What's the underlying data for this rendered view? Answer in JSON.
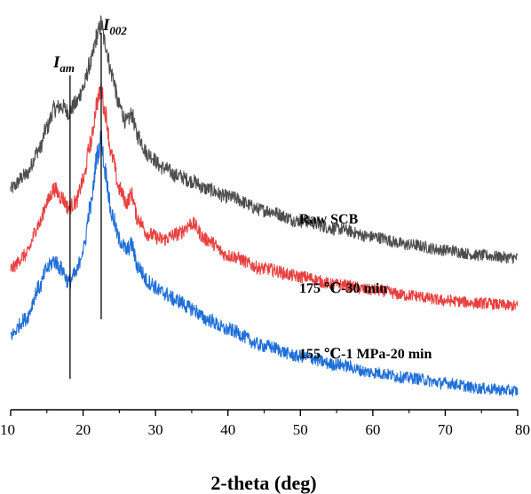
{
  "chart_data": {
    "type": "line",
    "xlabel": "2-theta (deg)",
    "ylabel": "",
    "xlim": [
      10,
      80
    ],
    "x_ticks": [
      "10",
      "20",
      "30",
      "40",
      "50",
      "60",
      "70",
      "80"
    ],
    "y_ticks_shown": false,
    "grid": false,
    "legend": "labels placed beside each curve",
    "markers": [
      {
        "main": "I",
        "sub": "am",
        "x": 18.2
      },
      {
        "main": "I",
        "sub": "002",
        "x": 22.5
      }
    ],
    "series": [
      {
        "name": "Raw SCB",
        "color": "#4d4d4d",
        "x": [
          10,
          12,
          14,
          15,
          16,
          17,
          18,
          19,
          20,
          21,
          22,
          22.5,
          23,
          24,
          25,
          26,
          26.7,
          27.5,
          29,
          31,
          33,
          35,
          37,
          40,
          45,
          50,
          55,
          60,
          65,
          70,
          75,
          80
        ],
        "y": [
          0.55,
          0.6,
          0.7,
          0.78,
          0.85,
          0.86,
          0.84,
          0.87,
          0.93,
          1.02,
          1.13,
          1.17,
          1.1,
          0.98,
          0.86,
          0.8,
          0.83,
          0.75,
          0.68,
          0.63,
          0.6,
          0.58,
          0.55,
          0.52,
          0.47,
          0.43,
          0.4,
          0.37,
          0.34,
          0.32,
          0.3,
          0.29
        ]
      },
      {
        "name": "175 ℃-30 min",
        "color": "#e8403f",
        "x": [
          10,
          12,
          14,
          15,
          16,
          17,
          18,
          19,
          20,
          21,
          22,
          22.5,
          23,
          24,
          25,
          26,
          26.7,
          27.5,
          29,
          31,
          33,
          35,
          37,
          40,
          45,
          50,
          55,
          60,
          65,
          70,
          75,
          80
        ],
        "y": [
          0.25,
          0.3,
          0.42,
          0.5,
          0.55,
          0.52,
          0.48,
          0.5,
          0.58,
          0.72,
          0.88,
          0.93,
          0.84,
          0.67,
          0.55,
          0.5,
          0.53,
          0.44,
          0.38,
          0.36,
          0.38,
          0.42,
          0.36,
          0.3,
          0.25,
          0.22,
          0.19,
          0.17,
          0.15,
          0.13,
          0.12,
          0.11
        ]
      },
      {
        "name": "155 ℃-1 MPa-20 min",
        "color": "#1f6fd8",
        "x": [
          10,
          12,
          14,
          15,
          16,
          17,
          18,
          19,
          20,
          21,
          22,
          22.5,
          23,
          24,
          25,
          26,
          26.7,
          27.5,
          29,
          31,
          33,
          35,
          37,
          40,
          45,
          50,
          55,
          60,
          65,
          70,
          75,
          80
        ],
        "y": [
          0.0,
          0.06,
          0.18,
          0.25,
          0.28,
          0.25,
          0.2,
          0.23,
          0.32,
          0.48,
          0.68,
          0.74,
          0.62,
          0.45,
          0.36,
          0.32,
          0.34,
          0.26,
          0.2,
          0.16,
          0.13,
          0.1,
          0.06,
          0.02,
          -0.04,
          -0.08,
          -0.11,
          -0.14,
          -0.16,
          -0.18,
          -0.2,
          -0.21
        ]
      }
    ]
  }
}
